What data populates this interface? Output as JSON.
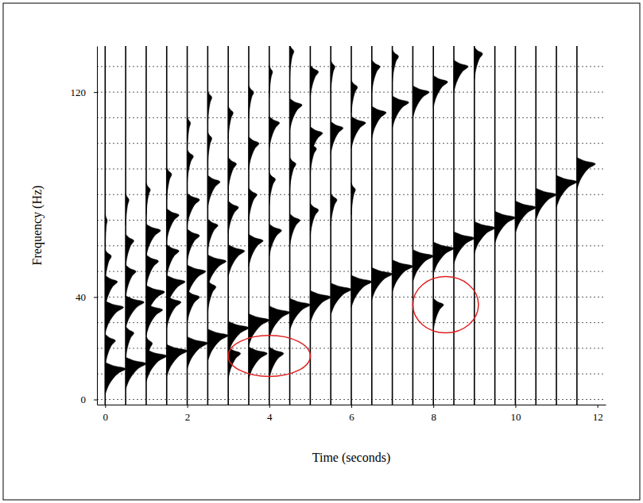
{
  "chart_data": {
    "type": "wiggle",
    "x_label": "Time (seconds)",
    "y_label": "Frequency (Hz)",
    "xlim": [
      -0.2,
      12.2
    ],
    "xticks": [
      0,
      2,
      4,
      6,
      8,
      10,
      12
    ],
    "ylim": [
      -2,
      138
    ],
    "yticks": [
      0,
      40,
      120
    ],
    "ygrid": [
      0,
      10,
      20,
      30,
      40,
      50,
      60,
      70,
      80,
      90,
      100,
      110,
      120,
      130
    ],
    "grid": true,
    "color": "#000000",
    "traces": [
      {
        "x": 0,
        "frequencies": [
          12,
          23,
          36,
          46,
          56,
          70
        ],
        "amplitudes": [
          0.5,
          0.25,
          0.45,
          0.3,
          0.15,
          0.05
        ]
      },
      {
        "x": 0.5,
        "frequencies": [
          14,
          26,
          38,
          50,
          62,
          78
        ],
        "amplitudes": [
          0.5,
          0.2,
          0.45,
          0.25,
          0.2,
          0.08
        ]
      },
      {
        "x": 1,
        "frequencies": [
          17,
          22,
          35,
          42,
          54,
          66,
          82
        ],
        "amplitudes": [
          0.5,
          0.15,
          0.4,
          0.45,
          0.3,
          0.35,
          0.1
        ]
      },
      {
        "x": 1.5,
        "frequencies": [
          19,
          38,
          46,
          58,
          72,
          88
        ],
        "amplitudes": [
          0.5,
          0.35,
          0.45,
          0.3,
          0.3,
          0.12
        ]
      },
      {
        "x": 2,
        "frequencies": [
          22,
          40,
          50,
          64,
          78,
          95,
          108
        ],
        "amplitudes": [
          0.5,
          0.3,
          0.45,
          0.3,
          0.3,
          0.15,
          0.08
        ]
      },
      {
        "x": 2.5,
        "frequencies": [
          25,
          44,
          54,
          68,
          85,
          102,
          118
        ],
        "amplitudes": [
          0.5,
          0.2,
          0.45,
          0.25,
          0.3,
          0.1,
          0.1
        ]
      },
      {
        "x": 3,
        "frequencies": [
          18,
          28,
          58,
          75,
          92,
          112
        ],
        "amplitudes": [
          0.3,
          0.5,
          0.4,
          0.25,
          0.2,
          0.12
        ]
      },
      {
        "x": 3.5,
        "frequencies": [
          18,
          31,
          62,
          80,
          100,
          120
        ],
        "amplitudes": [
          0.45,
          0.5,
          0.35,
          0.2,
          0.25,
          0.12
        ]
      },
      {
        "x": 4,
        "frequencies": [
          18,
          34,
          66,
          86,
          108,
          128
        ],
        "amplitudes": [
          0.35,
          0.5,
          0.3,
          0.15,
          0.25,
          0.08
        ]
      },
      {
        "x": 4.5,
        "frequencies": [
          37,
          70,
          92,
          115,
          136
        ],
        "amplitudes": [
          0.5,
          0.25,
          0.15,
          0.3,
          0.1
        ]
      },
      {
        "x": 5,
        "frequencies": [
          40,
          74,
          98,
          104,
          128
        ],
        "amplitudes": [
          0.5,
          0.2,
          0.15,
          0.3,
          0.2
        ]
      },
      {
        "x": 5.5,
        "frequencies": [
          43,
          78,
          106,
          130
        ],
        "amplitudes": [
          0.5,
          0.15,
          0.3,
          0.1
        ]
      },
      {
        "x": 6,
        "frequencies": [
          46,
          82,
          108,
          122
        ],
        "amplitudes": [
          0.5,
          0.1,
          0.35,
          0.15
        ]
      },
      {
        "x": 6.5,
        "frequencies": [
          49,
          112,
          130
        ],
        "amplitudes": [
          0.5,
          0.35,
          0.2
        ]
      },
      {
        "x": 7,
        "frequencies": [
          52,
          116,
          134
        ],
        "amplitudes": [
          0.5,
          0.4,
          0.15
        ]
      },
      {
        "x": 7.5,
        "frequencies": [
          56,
          120
        ],
        "amplitudes": [
          0.5,
          0.4
        ]
      },
      {
        "x": 8,
        "frequencies": [
          37,
          59,
          124
        ],
        "amplitudes": [
          0.25,
          0.5,
          0.35
        ]
      },
      {
        "x": 8.5,
        "frequencies": [
          63,
          130
        ],
        "amplitudes": [
          0.5,
          0.35
        ]
      },
      {
        "x": 9,
        "frequencies": [
          67,
          135
        ],
        "amplitudes": [
          0.5,
          0.2
        ]
      },
      {
        "x": 9.5,
        "frequencies": [
          71
        ],
        "amplitudes": [
          0.5
        ]
      },
      {
        "x": 10,
        "frequencies": [
          75
        ],
        "amplitudes": [
          0.5
        ]
      },
      {
        "x": 10.5,
        "frequencies": [
          80
        ],
        "amplitudes": [
          0.5
        ]
      },
      {
        "x": 11,
        "frequencies": [
          85
        ],
        "amplitudes": [
          0.5
        ]
      },
      {
        "x": 11.5,
        "frequencies": [
          92
        ],
        "amplitudes": [
          0.45
        ]
      }
    ],
    "annotations": [
      {
        "shape": "ellipse",
        "x": 4.0,
        "y": 17,
        "x_radius": 1.0,
        "y_radius": 8,
        "color": "#e02020"
      },
      {
        "shape": "ellipse",
        "x": 8.3,
        "y": 37,
        "x_radius": 0.8,
        "y_radius": 11,
        "color": "#e02020"
      }
    ]
  }
}
